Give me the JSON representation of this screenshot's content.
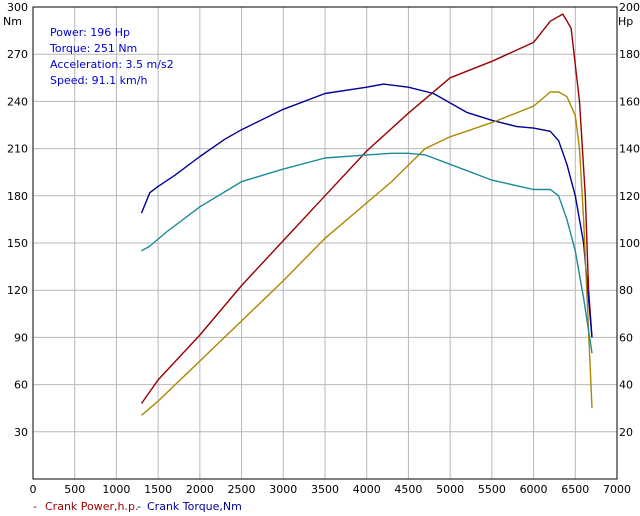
{
  "chart_data": {
    "type": "line",
    "x_ticks": [
      0,
      500,
      1000,
      1500,
      2000,
      2500,
      3000,
      3500,
      4000,
      4500,
      5000,
      5500,
      6000,
      6500,
      7000
    ],
    "xlim": [
      0,
      7000
    ],
    "left_axis": {
      "unit": "Nm",
      "ticks": [
        30,
        60,
        90,
        120,
        150,
        180,
        210,
        240,
        270,
        300
      ],
      "ylim": [
        0,
        300
      ]
    },
    "right_axis": {
      "unit": "Hp",
      "ticks": [
        20,
        40,
        60,
        80,
        100,
        120,
        140,
        160,
        180,
        200
      ],
      "ylim": [
        0,
        200
      ]
    },
    "grid": true,
    "info": {
      "power": "Power: 196 Hp",
      "torque": "Torque: 251 Nm",
      "acceleration": "Acceleration: 3.5 m/s2",
      "speed": "Speed: 91.1 km/h"
    },
    "legend": {
      "power": {
        "marker": "-",
        "label": "Crank Power,h.p."
      },
      "torque": {
        "marker": "-",
        "label": "Crank Torque,Nm"
      }
    },
    "series": [
      {
        "name": "Crank Power,h.p.",
        "axis": "right",
        "color": "#990000",
        "x": [
          1300,
          1500,
          2000,
          2500,
          3000,
          3500,
          4000,
          4500,
          5000,
          5500,
          6000,
          6200,
          6350,
          6450,
          6550,
          6620,
          6660,
          6700
        ],
        "values": [
          32,
          42,
          61,
          82,
          101,
          120,
          139,
          155,
          170,
          177,
          185,
          194,
          197,
          191,
          160,
          120,
          80,
          60
        ]
      },
      {
        "name": "Crank Torque,Nm",
        "axis": "left",
        "color": "#000099",
        "x": [
          1300,
          1400,
          1500,
          1700,
          2000,
          2300,
          2500,
          3000,
          3500,
          4000,
          4200,
          4500,
          4800,
          5200,
          5500,
          5800,
          6000,
          6200,
          6300,
          6400,
          6500,
          6600,
          6650,
          6700
        ],
        "values": [
          169,
          182,
          186,
          193,
          205,
          216,
          222,
          235,
          245,
          249,
          251,
          249,
          245,
          233,
          228,
          224,
          223,
          221,
          215,
          200,
          180,
          150,
          120,
          90
        ]
      },
      {
        "name": "",
        "axis": "right",
        "color": "#aa8800",
        "x": [
          1300,
          1500,
          2000,
          2500,
          3000,
          3500,
          4000,
          4300,
          4700,
          5000,
          5500,
          6000,
          6200,
          6300,
          6400,
          6500,
          6550,
          6600,
          6650,
          6700
        ],
        "values": [
          27,
          33,
          50,
          67,
          84,
          102,
          117,
          126,
          140,
          145,
          151,
          158,
          164,
          164,
          162,
          154,
          140,
          110,
          70,
          30
        ]
      },
      {
        "name": "",
        "axis": "left",
        "color": "#1a8a9a",
        "x": [
          1300,
          1400,
          1600,
          2000,
          2500,
          3000,
          3500,
          4000,
          4300,
          4500,
          4700,
          5000,
          5500,
          6000,
          6200,
          6300,
          6400,
          6500,
          6600,
          6700
        ],
        "values": [
          145,
          148,
          157,
          173,
          189,
          197,
          204,
          206,
          207,
          207,
          206,
          200,
          190,
          184,
          184,
          180,
          165,
          145,
          115,
          80
        ]
      }
    ]
  }
}
